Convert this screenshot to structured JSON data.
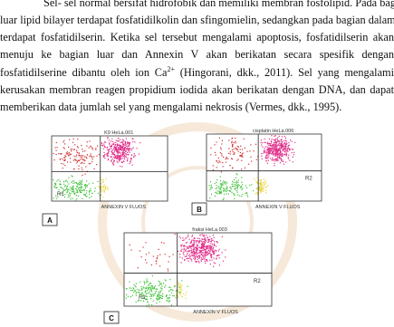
{
  "paragraph": {
    "lines": [
      "Sel- sel normal bersifat hidrofobik dan memiliki membran fosfolipid. Pada bagian",
      "luar lipid bilayer terdapat fosfatidilkolin dan sfingomielin, sedangkan pada bagian dalam",
      "terdapat fosfatidilserin. Ketika sel tersebut mengalami apoptosis, fosfatidilserin akan",
      "menuju ke bagian luar dan Annexin V akan berikatan secara spesifik dengan",
      [
        "fosfatidilserine dibantu oleh ion Ca",
        "2+",
        " (Hingorani, dkk., 2011). Sel yang mengalami"
      ],
      "kerusakan membran reagen propidium iodida akan berikatan dengan DNA, dan dapat",
      "memberikan data jumlah sel yang mengalami nekrosis (Vermes, dkk., 1995)."
    ]
  },
  "figure": {
    "panels": [
      {
        "title": "K9 HeLa.001",
        "x_axis": "ANNEXIN V FLUOS",
        "region": "R1",
        "letter": "A"
      },
      {
        "title": "cisplatin HeLa.006",
        "x_axis": "ANNEXIN V FLUOS",
        "region": "R2",
        "letter": "B"
      },
      {
        "title": "fraksi HeLa.003",
        "x_axis": "ANNEXIN V FLUOS",
        "regions": [
          "R1",
          "R2"
        ],
        "letter": "C"
      }
    ]
  }
}
